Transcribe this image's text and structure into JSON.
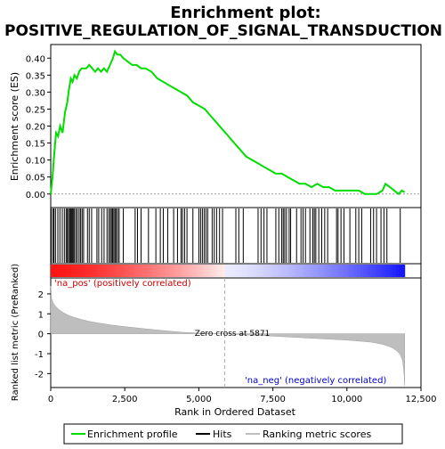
{
  "chart_data": {
    "type": "line",
    "title": "Enrichment plot:",
    "subtitle": "POSITIVE_REGULATION_OF_SIGNAL_TRANSDUCTION",
    "xlabel": "Rank in Ordered Dataset",
    "ylabel_top": "Enrichment score (ES)",
    "ylabel_bottom": "Ranked list metric (PreRanked)",
    "xlim": [
      0,
      12500
    ],
    "x_ticks": [
      0,
      2500,
      5000,
      7500,
      10000,
      12500
    ],
    "x_tick_labels": [
      "0",
      "2,500",
      "5,000",
      "7,500",
      "10,000",
      "12,500"
    ],
    "es_ylim": [
      -0.04,
      0.44
    ],
    "es_ticks": [
      0.0,
      0.05,
      0.1,
      0.15,
      0.2,
      0.25,
      0.3,
      0.35,
      0.4
    ],
    "es_tick_labels": [
      "0.00",
      "0.05",
      "0.10",
      "0.15",
      "0.20",
      "0.25",
      "0.30",
      "0.35",
      "0.40"
    ],
    "metric_ylim": [
      -2.7,
      2.8
    ],
    "metric_ticks": [
      2,
      1,
      0,
      -1,
      -2
    ],
    "metric_tick_labels": [
      "2",
      "1",
      "0",
      "-1",
      "-2"
    ],
    "n_genes": 11950,
    "zero_cross": 5871,
    "zero_cross_label": "Zero cross at 5871",
    "pos_label": "'na_pos' (positively correlated)",
    "neg_label": "'na_neg' (negatively correlated)",
    "enrichment_profile": {
      "name": "Enrichment profile",
      "color": "#00dd00",
      "x": [
        0,
        60,
        120,
        180,
        250,
        320,
        400,
        480,
        560,
        620,
        680,
        740,
        800,
        880,
        960,
        1040,
        1100,
        1200,
        1300,
        1400,
        1500,
        1600,
        1700,
        1800,
        1900,
        2000,
        2100,
        2170,
        2250,
        2350,
        2450,
        2600,
        2750,
        2900,
        3050,
        3200,
        3400,
        3600,
        3800,
        4000,
        4200,
        4400,
        4600,
        4800,
        5000,
        5200,
        5400,
        5600,
        5800,
        6000,
        6200,
        6400,
        6600,
        6800,
        7000,
        7200,
        7400,
        7600,
        7800,
        8000,
        8200,
        8400,
        8600,
        8800,
        9000,
        9200,
        9400,
        9600,
        9800,
        10000,
        10200,
        10400,
        10600,
        10800,
        11000,
        11200,
        11300,
        11450,
        11600,
        11750,
        11850,
        11950
      ],
      "y": [
        0.0,
        0.05,
        0.12,
        0.18,
        0.17,
        0.2,
        0.18,
        0.24,
        0.27,
        0.31,
        0.34,
        0.33,
        0.35,
        0.34,
        0.36,
        0.37,
        0.37,
        0.37,
        0.38,
        0.37,
        0.36,
        0.37,
        0.36,
        0.37,
        0.36,
        0.38,
        0.4,
        0.42,
        0.41,
        0.41,
        0.4,
        0.39,
        0.38,
        0.38,
        0.37,
        0.37,
        0.36,
        0.34,
        0.33,
        0.32,
        0.31,
        0.3,
        0.29,
        0.27,
        0.26,
        0.25,
        0.23,
        0.21,
        0.19,
        0.17,
        0.15,
        0.13,
        0.11,
        0.1,
        0.09,
        0.08,
        0.07,
        0.06,
        0.06,
        0.05,
        0.04,
        0.03,
        0.03,
        0.02,
        0.03,
        0.02,
        0.02,
        0.01,
        0.01,
        0.01,
        0.01,
        0.01,
        0.0,
        0.0,
        0.0,
        0.01,
        0.03,
        0.02,
        0.01,
        0.0,
        0.01,
        0.005
      ]
    },
    "hits": {
      "name": "Hits",
      "color": "#000000",
      "positions": [
        20,
        80,
        110,
        160,
        240,
        310,
        390,
        460,
        520,
        560,
        600,
        640,
        670,
        700,
        730,
        760,
        800,
        850,
        900,
        960,
        1010,
        1060,
        1110,
        1240,
        1300,
        1380,
        1560,
        1620,
        1720,
        1800,
        1900,
        1960,
        2010,
        2050,
        2090,
        2130,
        2170,
        2210,
        2260,
        2310,
        2450,
        2850,
        2930,
        3050,
        3300,
        3550,
        3700,
        3800,
        3950,
        4150,
        4280,
        4400,
        4450,
        4520,
        4600,
        4800,
        5000,
        5060,
        5120,
        5180,
        5240,
        5300,
        5450,
        5520,
        5600,
        5700,
        5800,
        6250,
        6350,
        6500,
        7000,
        7100,
        7200,
        7300,
        7600,
        7700,
        7800,
        7850,
        7900,
        7960,
        8050,
        8100,
        8300,
        8450,
        8520,
        8600,
        8750,
        8850,
        8900,
        8950,
        9050,
        9150,
        9250,
        9350,
        9650,
        9700,
        9800,
        9900,
        10100,
        10300,
        10400,
        10500,
        10800,
        10900,
        11000,
        11150,
        11250,
        11350,
        11800
      ]
    },
    "ranking_metric": {
      "name": "Ranking metric scores",
      "color": "#bebebe",
      "x": [
        0,
        30,
        80,
        150,
        250,
        400,
        600,
        800,
        1000,
        1300,
        1600,
        2000,
        2500,
        3000,
        3500,
        4000,
        4500,
        5000,
        5500,
        5871,
        6200,
        6800,
        7500,
        8000,
        8500,
        9000,
        9500,
        10000,
        10500,
        10800,
        11000,
        11200,
        11400,
        11550,
        11700,
        11800,
        11880,
        11930,
        11950
      ],
      "y": [
        2.4,
        1.75,
        1.55,
        1.4,
        1.25,
        1.08,
        0.92,
        0.82,
        0.73,
        0.62,
        0.54,
        0.45,
        0.36,
        0.28,
        0.2,
        0.13,
        0.07,
        0.03,
        0.01,
        0.0,
        -0.03,
        -0.07,
        -0.12,
        -0.16,
        -0.2,
        -0.24,
        -0.28,
        -0.32,
        -0.38,
        -0.42,
        -0.47,
        -0.53,
        -0.62,
        -0.72,
        -0.88,
        -1.05,
        -1.35,
        -2.0,
        -2.6
      ]
    },
    "legend": [
      {
        "name": "Enrichment profile",
        "color": "#00dd00"
      },
      {
        "name": "Hits",
        "color": "#000000"
      },
      {
        "name": "Ranking metric scores",
        "color": "#bebebe"
      }
    ],
    "legend_position": "bottom",
    "grid": false
  }
}
